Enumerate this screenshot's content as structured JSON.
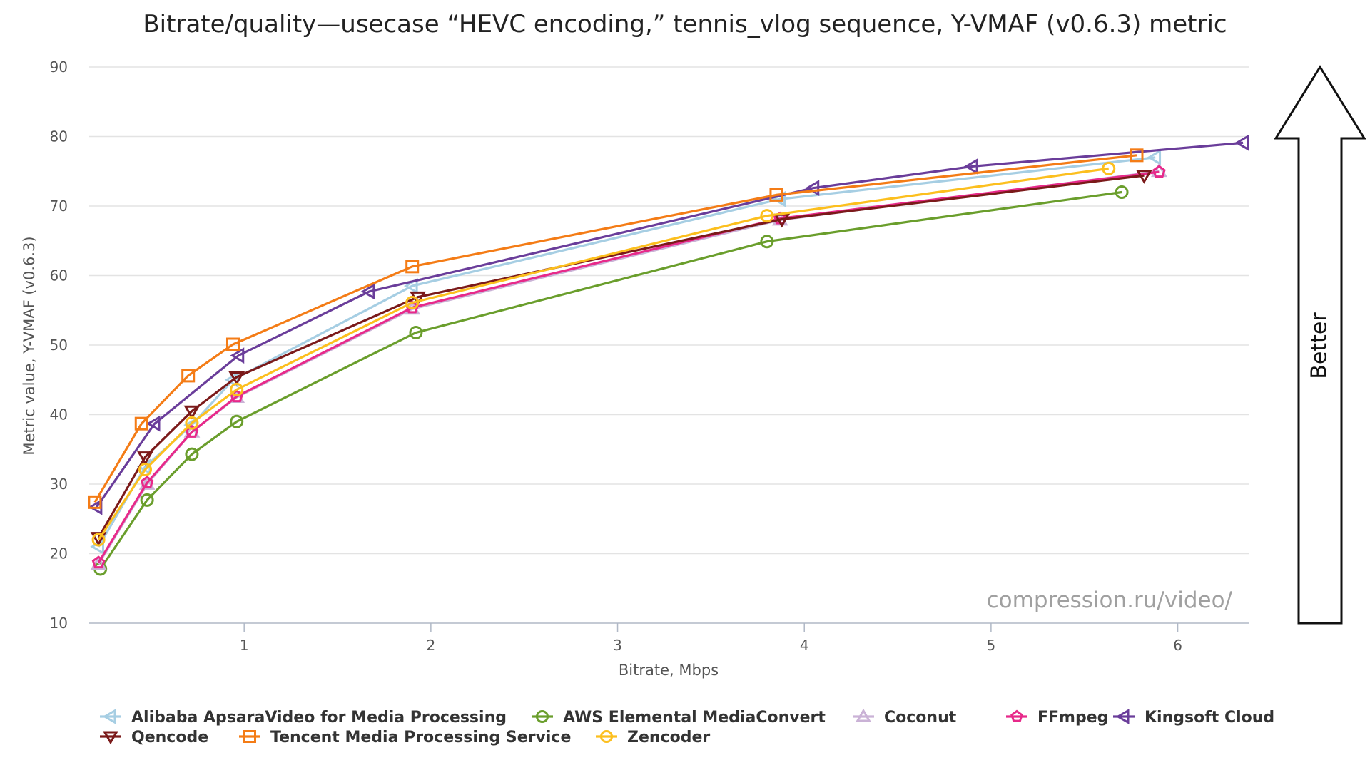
{
  "chart_data": {
    "type": "line",
    "title": "Bitrate/quality—usecase “HEVC encoding,” tennis_vlog sequence, Y-VMAF (v0.6.3) metric",
    "xlabel": "Bitrate, Mbps",
    "ylabel": "Metric value, Y-VMAF (v0.6.3)",
    "xlim": [
      0.17,
      6.38
    ],
    "ylim": [
      10,
      90
    ],
    "x_ticks": [
      "1",
      "2",
      "3",
      "4",
      "5",
      "6"
    ],
    "y_ticks": [
      "10",
      "20",
      "30",
      "40",
      "50",
      "60",
      "70",
      "80",
      "90"
    ],
    "grid": "horizontal",
    "legend_position": "bottom",
    "watermark": "compression.ru/video/",
    "annotation": "Better",
    "series": [
      {
        "name": "Alibaba ApsaraVideo for Media Processing",
        "color": "#a6cee3",
        "marker": "triangle-left",
        "points": [
          [
            0.22,
            21
          ],
          [
            0.47,
            32.5
          ],
          [
            0.72,
            38.5
          ],
          [
            0.94,
            45
          ],
          [
            1.9,
            58.5
          ],
          [
            3.87,
            71
          ],
          [
            5.88,
            77
          ]
        ]
      },
      {
        "name": "AWS Elemental MediaConvert",
        "color": "#6a9e2c",
        "marker": "circle",
        "points": [
          [
            0.23,
            17.8
          ],
          [
            0.48,
            27.7
          ],
          [
            0.72,
            34.3
          ],
          [
            0.96,
            39
          ],
          [
            1.92,
            51.8
          ],
          [
            3.8,
            64.9
          ],
          [
            5.7,
            72
          ]
        ]
      },
      {
        "name": "Coconut",
        "color": "#cab2d6",
        "marker": "triangle-up",
        "points": [
          [
            0.22,
            18.5
          ],
          [
            0.48,
            30
          ],
          [
            0.72,
            37.5
          ],
          [
            0.96,
            42.5
          ],
          [
            1.9,
            55.2
          ],
          [
            3.87,
            68
          ],
          [
            5.9,
            75
          ]
        ]
      },
      {
        "name": "FFmpeg",
        "color": "#e7298a",
        "marker": "pentagon",
        "points": [
          [
            0.22,
            18.7
          ],
          [
            0.48,
            30.2
          ],
          [
            0.72,
            37.5
          ],
          [
            0.96,
            42.6
          ],
          [
            1.9,
            55.4
          ],
          [
            3.87,
            68.2
          ],
          [
            5.9,
            74.9
          ]
        ]
      },
      {
        "name": "Kingsoft Cloud",
        "color": "#6a3d9a",
        "marker": "triangle-left",
        "points": [
          [
            0.21,
            26.7
          ],
          [
            0.52,
            38.7
          ],
          [
            0.97,
            48.5
          ],
          [
            1.67,
            57.7
          ],
          [
            4.05,
            72.6
          ],
          [
            4.9,
            75.7
          ],
          [
            6.35,
            79.1
          ]
        ]
      },
      {
        "name": "Qencode",
        "color": "#7b1a1a",
        "marker": "triangle-down",
        "points": [
          [
            0.22,
            22.3
          ],
          [
            0.47,
            33.9
          ],
          [
            0.72,
            40.5
          ],
          [
            0.96,
            45.4
          ],
          [
            1.93,
            56.9
          ],
          [
            3.88,
            68.1
          ],
          [
            5.82,
            74.4
          ]
        ]
      },
      {
        "name": "Tencent Media Processing Service",
        "color": "#f47c16",
        "marker": "square",
        "points": [
          [
            0.2,
            27.4
          ],
          [
            0.45,
            38.7
          ],
          [
            0.7,
            45.6
          ],
          [
            0.94,
            50.1
          ],
          [
            1.9,
            61.3
          ],
          [
            3.85,
            71.6
          ],
          [
            5.78,
            77.3
          ]
        ]
      },
      {
        "name": "Zencoder",
        "color": "#fcbf1e",
        "marker": "circle",
        "points": [
          [
            0.22,
            22
          ],
          [
            0.47,
            32.1
          ],
          [
            0.72,
            38.8
          ],
          [
            0.96,
            43.6
          ],
          [
            1.9,
            56.1
          ],
          [
            3.8,
            68.6
          ],
          [
            5.63,
            75.4
          ]
        ]
      }
    ]
  }
}
